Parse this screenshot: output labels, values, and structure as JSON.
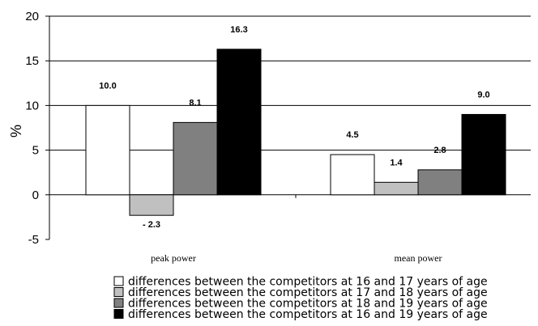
{
  "chart_data": {
    "type": "bar",
    "categories": [
      "peak power",
      "mean power"
    ],
    "ylabel": "%",
    "ylim": [
      -5,
      20
    ],
    "yticks": [
      -5,
      0,
      5,
      10,
      15,
      20
    ],
    "grid": true,
    "legend_position": "bottom",
    "series": [
      {
        "name": "differences between the competitors at 16 and 17 years of age",
        "values": [
          10.0,
          4.5
        ],
        "labels": [
          "10.0",
          "4.5"
        ],
        "color": "#ffffff"
      },
      {
        "name": "differences between the competitors at 17 and 18 years of age",
        "values": [
          -2.3,
          1.4
        ],
        "labels": [
          "- 2.3",
          "1.4"
        ],
        "color": "#c0c0c0"
      },
      {
        "name": "differences between the competitors at 18 and 19 years of age",
        "values": [
          8.1,
          2.8
        ],
        "labels": [
          "8.1",
          "2.8"
        ],
        "color": "#808080"
      },
      {
        "name": "differences between the competitors at 16 and 19 years of age",
        "values": [
          16.3,
          9.0
        ],
        "labels": [
          "16.3",
          "9.0"
        ],
        "color": "#000000"
      }
    ]
  }
}
